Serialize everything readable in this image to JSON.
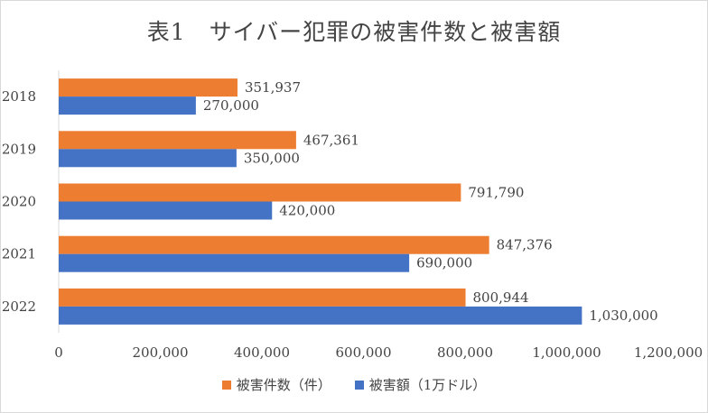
{
  "chart_data": {
    "type": "bar",
    "orientation": "horizontal",
    "title": "表1　サイバー犯罪の被害件数と被害額",
    "categories": [
      "2018",
      "2019",
      "2020",
      "2021",
      "2022"
    ],
    "series": [
      {
        "name": "被害件数（件）",
        "color": "#ED7D31",
        "values": [
          351937,
          467361,
          791790,
          847376,
          800944
        ],
        "labels": [
          "351,937",
          "467,361",
          "791,790",
          "847,376",
          "800,944"
        ]
      },
      {
        "name": "被害額（1万ドル）",
        "color": "#4472C4",
        "values": [
          270000,
          350000,
          420000,
          690000,
          1030000
        ],
        "labels": [
          "270,000",
          "350,000",
          "420,000",
          "690,000",
          "1,030,000"
        ]
      }
    ],
    "xlim": [
      0,
      1200000
    ],
    "x_ticks": [
      0,
      200000,
      400000,
      600000,
      800000,
      1000000,
      1200000
    ],
    "x_tick_labels": [
      "0",
      "200,000",
      "400,000",
      "600,000",
      "800,000",
      "1,000,000",
      "1,200,000"
    ],
    "grid": false,
    "legend_position": "bottom"
  }
}
